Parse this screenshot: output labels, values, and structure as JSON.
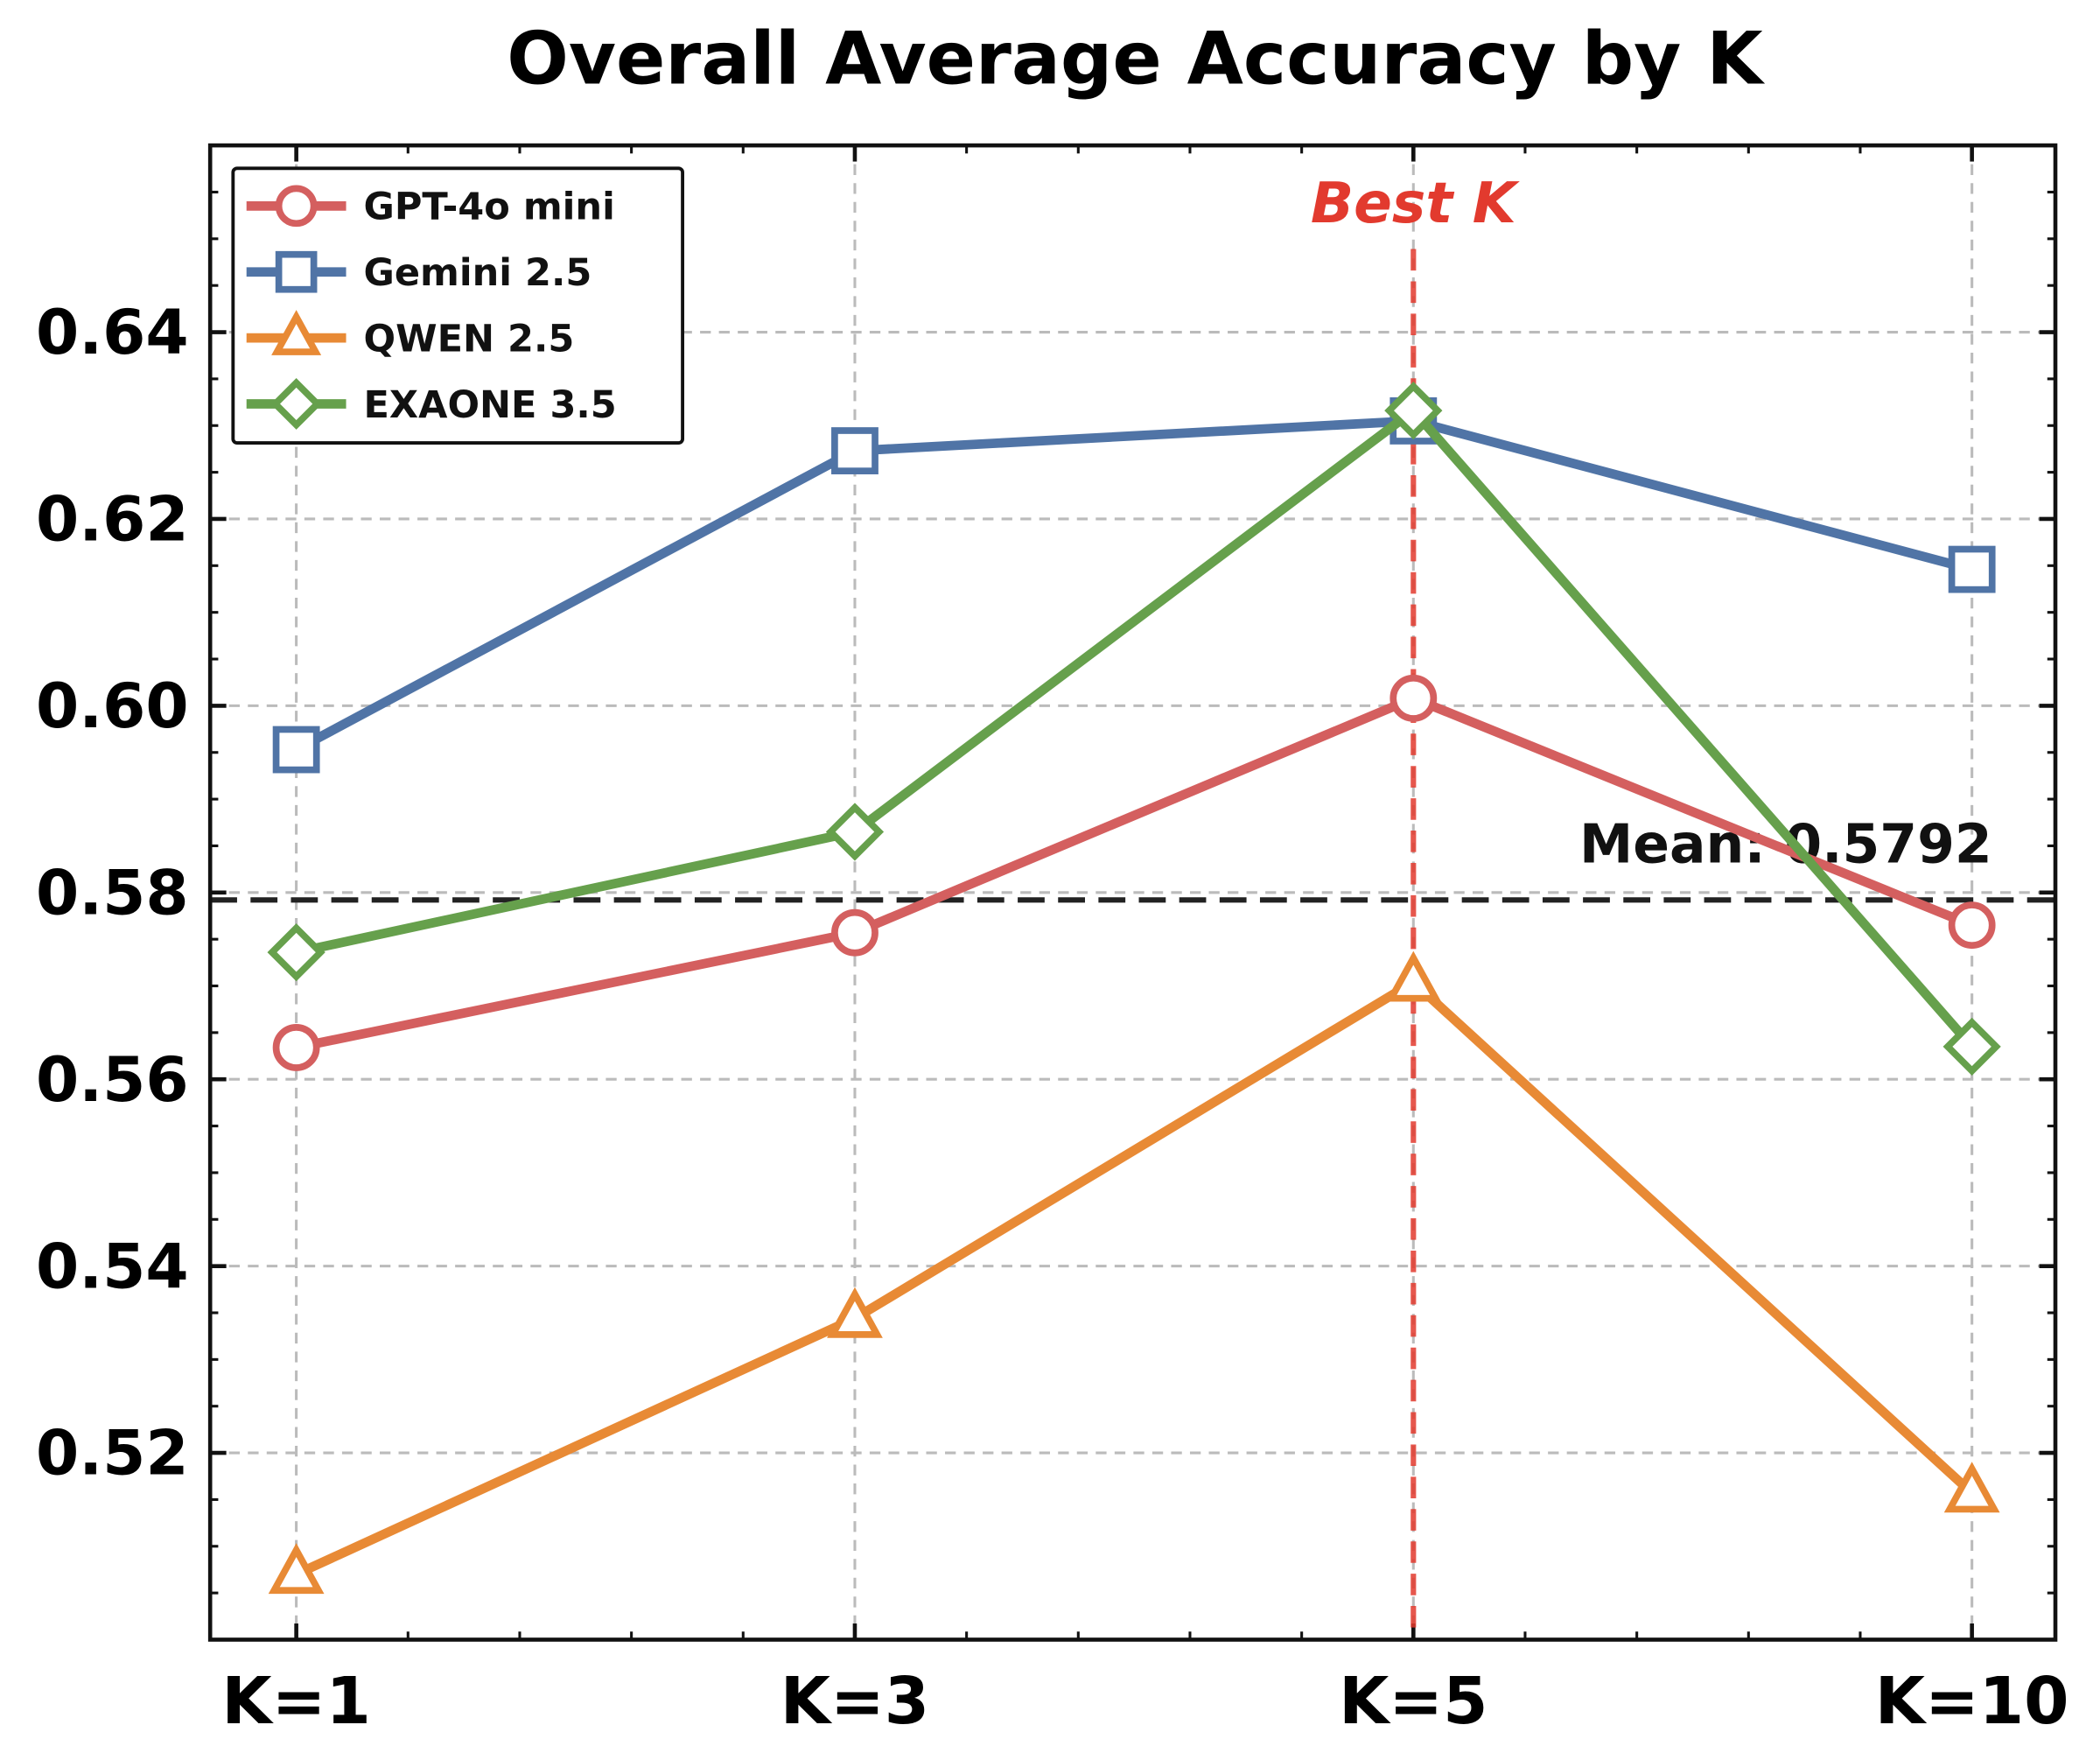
{
  "chart_data": {
    "type": "line",
    "title": "Overall Average Accuracy by K",
    "xlabel": "",
    "ylabel": "",
    "categories": [
      "K=1",
      "K=3",
      "K=5",
      "K=10"
    ],
    "ylim": [
      0.5,
      0.66
    ],
    "yticks": [
      "0.52",
      "0.54",
      "0.56",
      "0.58",
      "0.60",
      "0.62",
      "0.64"
    ],
    "grid": true,
    "legend_placement": "top-left",
    "series": [
      {
        "name": "GPT-4o mini",
        "values": [
          0.5634,
          0.5757,
          0.6008,
          0.5765
        ],
        "color": "#d45f5f",
        "marker": "circle"
      },
      {
        "name": "Gemini 2.5",
        "values": [
          0.5953,
          0.6273,
          0.6305,
          0.6146
        ],
        "color": "#5074a6",
        "marker": "square"
      },
      {
        "name": "QWEN 2.5",
        "values": [
          0.507,
          0.5344,
          0.5704,
          0.5157
        ],
        "color": "#e88a35",
        "marker": "triangle"
      },
      {
        "name": "EXAONE 3.5",
        "values": [
          0.5736,
          0.5865,
          0.6316,
          0.5635
        ],
        "color": "#66a04c",
        "marker": "diamond"
      }
    ],
    "mean_line": {
      "value": 0.5792,
      "label": "Mean: 0.5792",
      "color": "#222222"
    },
    "best_k": {
      "category": "K=5",
      "label": "Best K",
      "color": "#e23a2e"
    }
  }
}
